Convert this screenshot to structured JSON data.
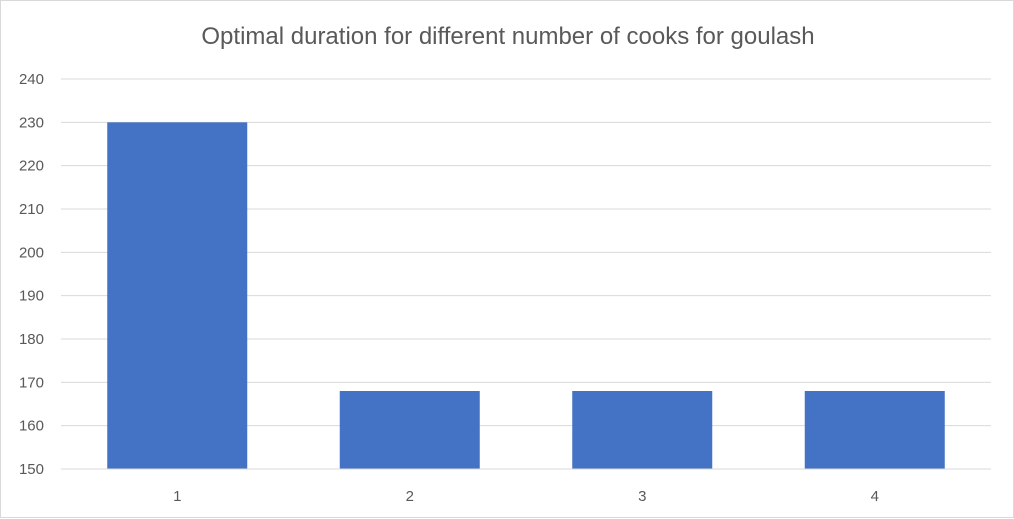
{
  "chart_data": {
    "type": "bar",
    "title": "Optimal duration for different number of cooks for goulash",
    "xlabel": "",
    "ylabel": "",
    "categories": [
      "1",
      "2",
      "3",
      "4"
    ],
    "series": [
      {
        "values": [
          230,
          168,
          168,
          168
        ]
      }
    ],
    "ylim": [
      150,
      240
    ],
    "yticks": [
      150,
      160,
      170,
      180,
      190,
      200,
      210,
      220,
      230,
      240
    ],
    "grid": true,
    "legend": "none",
    "colors": {
      "bar": "#4472c4",
      "grid": "#d9d9d9",
      "text": "#595959"
    }
  }
}
